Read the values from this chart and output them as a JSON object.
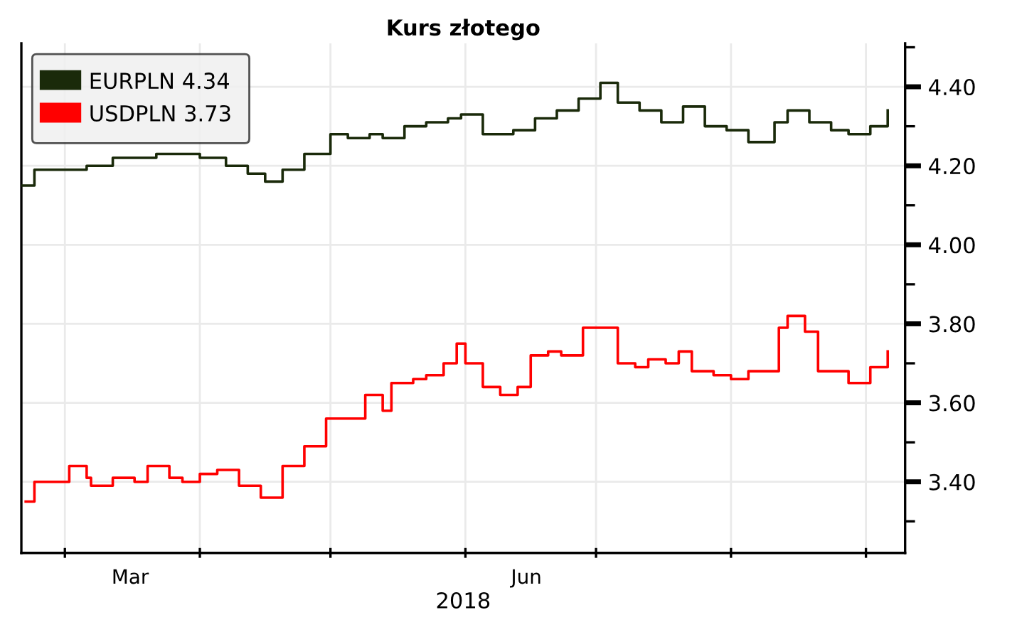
{
  "chart_data": {
    "type": "step",
    "title": "Kurs złotego",
    "xlabel": "2018",
    "series": [
      {
        "name": "EURPLN 4.34",
        "color": "#1a2a0a",
        "x": [
          "2018-02-19",
          "2018-02-22",
          "2018-03-01",
          "2018-03-06",
          "2018-03-12",
          "2018-03-19",
          "2018-03-22",
          "2018-03-27",
          "2018-04-01",
          "2018-04-07",
          "2018-04-12",
          "2018-04-16",
          "2018-04-20",
          "2018-04-25",
          "2018-04-29",
          "2018-05-01",
          "2018-05-05",
          "2018-05-10",
          "2018-05-13",
          "2018-05-18",
          "2018-05-23",
          "2018-05-28",
          "2018-05-31",
          "2018-06-05",
          "2018-06-12",
          "2018-06-17",
          "2018-06-22",
          "2018-06-27",
          "2018-07-02",
          "2018-07-06",
          "2018-07-11",
          "2018-07-16",
          "2018-07-21",
          "2018-07-26",
          "2018-07-31",
          "2018-08-05",
          "2018-08-11",
          "2018-08-14",
          "2018-08-19",
          "2018-08-24",
          "2018-08-28",
          "2018-09-02",
          "2018-09-06"
        ],
        "values": [
          4.15,
          4.19,
          4.19,
          4.2,
          4.22,
          4.22,
          4.23,
          4.23,
          4.22,
          4.2,
          4.18,
          4.16,
          4.19,
          4.23,
          4.23,
          4.28,
          4.27,
          4.28,
          4.27,
          4.3,
          4.31,
          4.32,
          4.33,
          4.28,
          4.29,
          4.32,
          4.34,
          4.37,
          4.41,
          4.36,
          4.34,
          4.31,
          4.35,
          4.3,
          4.29,
          4.26,
          4.31,
          4.34,
          4.31,
          4.29,
          4.28,
          4.3,
          4.34
        ]
      },
      {
        "name": "USDPLN 3.73",
        "color": "#ff0000",
        "x": [
          "2018-02-20",
          "2018-02-22",
          "2018-02-27",
          "2018-03-02",
          "2018-03-06",
          "2018-03-07",
          "2018-03-12",
          "2018-03-17",
          "2018-03-20",
          "2018-03-25",
          "2018-03-28",
          "2018-04-01",
          "2018-04-05",
          "2018-04-10",
          "2018-04-15",
          "2018-04-20",
          "2018-04-25",
          "2018-04-30",
          "2018-05-05",
          "2018-05-09",
          "2018-05-13",
          "2018-05-15",
          "2018-05-20",
          "2018-05-23",
          "2018-05-27",
          "2018-05-30",
          "2018-06-01",
          "2018-06-05",
          "2018-06-09",
          "2018-06-13",
          "2018-06-16",
          "2018-06-20",
          "2018-06-23",
          "2018-06-28",
          "2018-07-01",
          "2018-07-06",
          "2018-07-10",
          "2018-07-13",
          "2018-07-17",
          "2018-07-20",
          "2018-07-23",
          "2018-07-28",
          "2018-08-01",
          "2018-08-05",
          "2018-08-09",
          "2018-08-12",
          "2018-08-14",
          "2018-08-18",
          "2018-08-21",
          "2018-08-24",
          "2018-08-28",
          "2018-09-02",
          "2018-09-06"
        ],
        "values": [
          3.35,
          3.4,
          3.4,
          3.44,
          3.41,
          3.39,
          3.41,
          3.4,
          3.44,
          3.41,
          3.4,
          3.42,
          3.43,
          3.39,
          3.36,
          3.44,
          3.49,
          3.56,
          3.56,
          3.62,
          3.58,
          3.65,
          3.66,
          3.67,
          3.7,
          3.75,
          3.7,
          3.64,
          3.62,
          3.64,
          3.72,
          3.73,
          3.72,
          3.79,
          3.79,
          3.7,
          3.69,
          3.71,
          3.7,
          3.73,
          3.68,
          3.67,
          3.66,
          3.68,
          3.68,
          3.79,
          3.82,
          3.78,
          3.68,
          3.68,
          3.65,
          3.69,
          3.73
        ]
      }
    ],
    "xlim": [
      "2018-02-19",
      "2018-09-10"
    ],
    "xticks": [
      {
        "value": "2018-03-01",
        "label": null
      },
      {
        "value": "2018-03-16",
        "label": "Mar"
      },
      {
        "value": "2018-04-01",
        "label": null
      },
      {
        "value": "2018-05-01",
        "label": null
      },
      {
        "value": "2018-06-01",
        "label": null
      },
      {
        "value": "2018-06-15",
        "label": "Jun"
      },
      {
        "value": "2018-07-01",
        "label": null
      },
      {
        "value": "2018-08-01",
        "label": null
      },
      {
        "value": "2018-09-01",
        "label": null
      }
    ],
    "ylim": [
      3.22,
      4.51
    ],
    "yticks": [
      {
        "value": 3.3,
        "label": null
      },
      {
        "value": 3.4,
        "label": "3.40"
      },
      {
        "value": 3.5,
        "label": null
      },
      {
        "value": 3.6,
        "label": "3.60"
      },
      {
        "value": 3.7,
        "label": null
      },
      {
        "value": 3.8,
        "label": "3.80"
      },
      {
        "value": 3.9,
        "label": null
      },
      {
        "value": 4.0,
        "label": "4.00"
      },
      {
        "value": 4.1,
        "label": null
      },
      {
        "value": 4.2,
        "label": "4.20"
      },
      {
        "value": 4.3,
        "label": null
      },
      {
        "value": 4.4,
        "label": "4.40"
      },
      {
        "value": 4.5,
        "label": null
      }
    ],
    "grid": true,
    "legend": "top left"
  }
}
